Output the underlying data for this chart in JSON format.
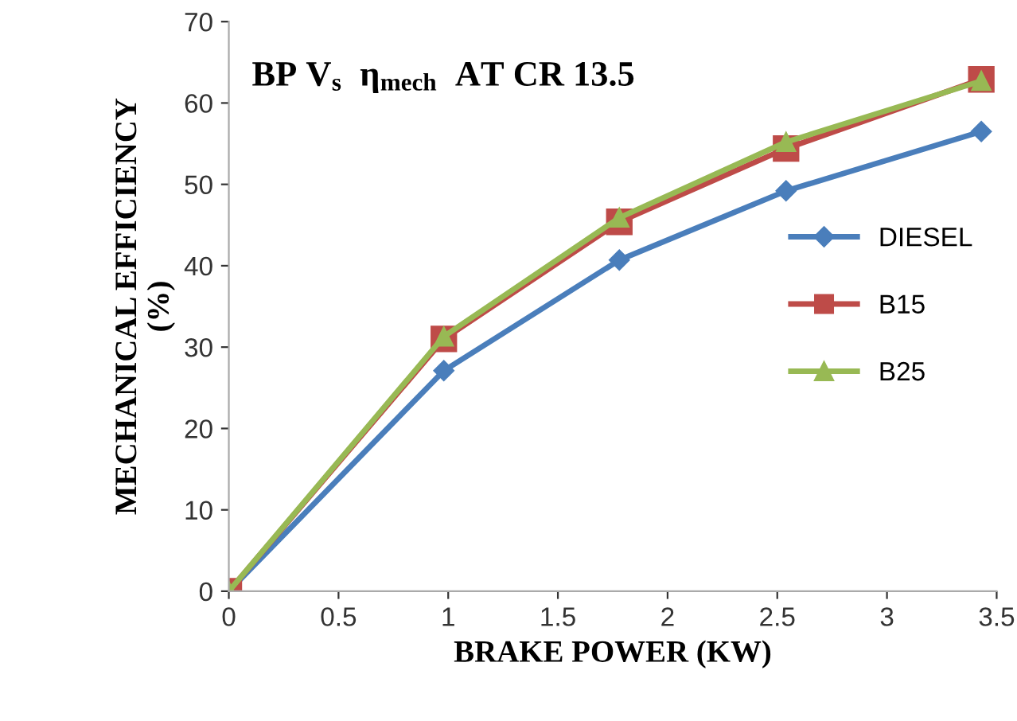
{
  "chart_data": {
    "type": "line",
    "title": "BP V$_{s}$  η$_{mech}$  AT CR 13.5",
    "xlabel": "BRAKE POWER (KW)",
    "ylabel": "MECHANICAL EFFICIENCY\n(%)",
    "xlim": [
      0,
      3.5
    ],
    "ylim": [
      0,
      70
    ],
    "xticks": [
      0,
      0.5,
      1,
      1.5,
      2,
      2.5,
      3,
      3.5
    ],
    "yticks": [
      0,
      10,
      20,
      30,
      40,
      50,
      60,
      70
    ],
    "grid": false,
    "legend": "right",
    "x": [
      0,
      0.98,
      1.78,
      2.54,
      3.43
    ],
    "series": [
      {
        "name": "DIESEL",
        "color": "#4a7ebb",
        "marker": "diamond",
        "values": [
          0,
          27.1,
          40.7,
          49.2,
          56.5
        ]
      },
      {
        "name": "B15",
        "color": "#be4b48",
        "marker": "square",
        "values": [
          0,
          31.0,
          45.4,
          54.4,
          62.9
        ]
      },
      {
        "name": "B25",
        "color": "#98b954",
        "marker": "triangle",
        "values": [
          0,
          31.3,
          45.9,
          55.2,
          62.7
        ]
      }
    ]
  }
}
